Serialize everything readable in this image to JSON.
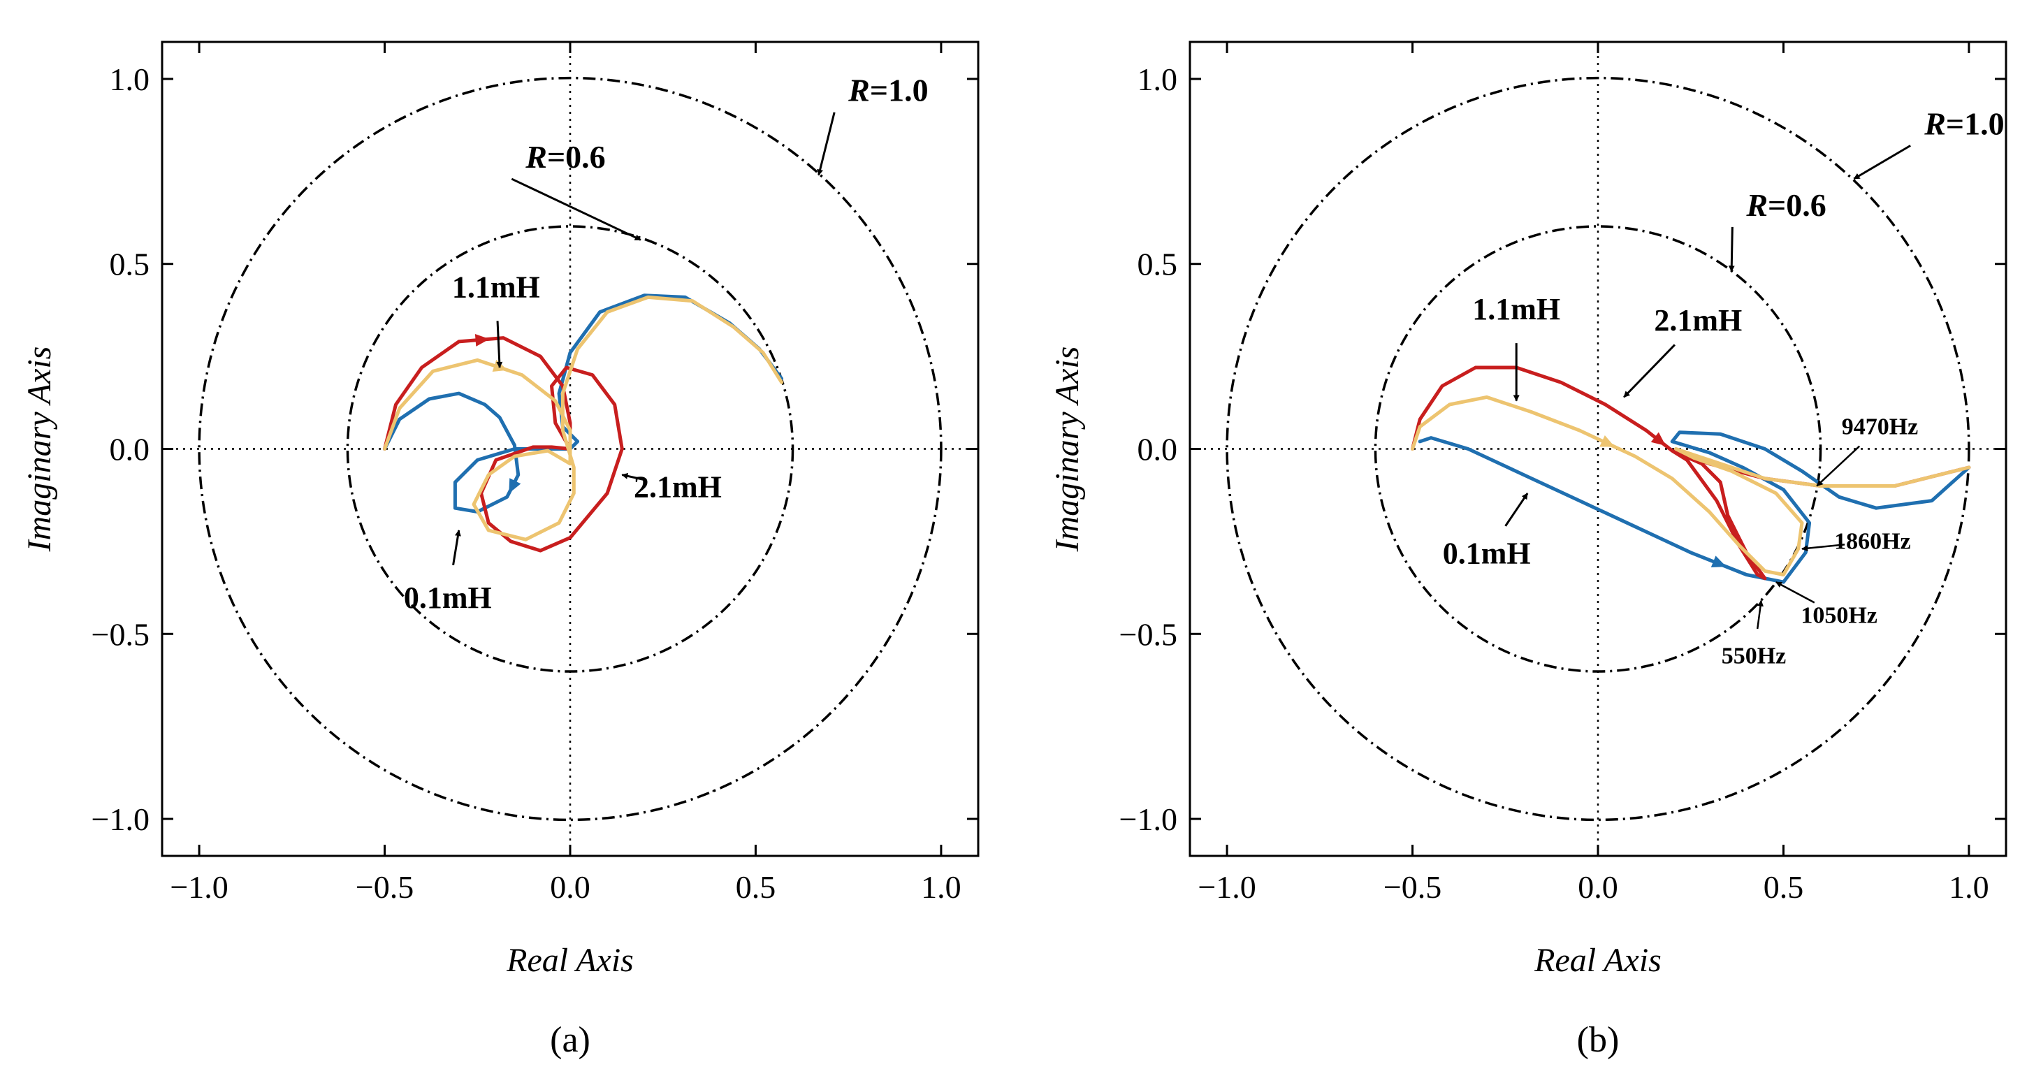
{
  "chart_data": [
    {
      "type": "line",
      "panel_label": "(a)",
      "xlabel": "Real Axis",
      "ylabel": "Imaginary Axis",
      "xlim": [
        -1.1,
        1.1
      ],
      "ylim": [
        -1.1,
        1.1
      ],
      "xticks": [
        -1.0,
        -0.5,
        0.0,
        0.5,
        1.0
      ],
      "yticks": [
        -1.0,
        -0.5,
        0.0,
        0.5,
        1.0
      ],
      "xtick_labels": [
        "−1.0",
        "−0.5",
        "0.0",
        "0.5",
        "1.0"
      ],
      "ytick_labels": [
        "−1.0",
        "−0.5",
        "0.0",
        "0.5",
        "1.0"
      ],
      "reference_circles": [
        {
          "radius": 0.6,
          "label_prefix": "R",
          "label_suffix": "=0.6",
          "label_at": [
            -0.12,
            0.76
          ],
          "arrow_to": [
            0.19,
            0.565
          ]
        },
        {
          "radius": 1.0,
          "label_prefix": "R",
          "label_suffix": "=1.0",
          "label_at": [
            0.75,
            0.94
          ],
          "arrow_to": [
            0.67,
            0.74
          ]
        }
      ],
      "series": [
        {
          "name": "0.1mH",
          "color": "#1f6fb0",
          "points": [
            [
              -0.5,
              0.0
            ],
            [
              -0.46,
              0.08
            ],
            [
              -0.38,
              0.135
            ],
            [
              -0.3,
              0.15
            ],
            [
              -0.23,
              0.12
            ],
            [
              -0.19,
              0.085
            ],
            [
              -0.15,
              0.01
            ],
            [
              -0.14,
              -0.07
            ],
            [
              -0.17,
              -0.13
            ],
            [
              -0.25,
              -0.17
            ],
            [
              -0.31,
              -0.16
            ],
            [
              -0.31,
              -0.09
            ],
            [
              -0.25,
              -0.03
            ],
            [
              -0.15,
              0.0
            ],
            [
              -0.05,
              0.0
            ],
            [
              0.0,
              0.0
            ],
            [
              0.02,
              0.02
            ],
            [
              -0.02,
              0.06
            ],
            [
              -0.03,
              0.15
            ],
            [
              0.0,
              0.26
            ],
            [
              0.08,
              0.37
            ],
            [
              0.2,
              0.415
            ],
            [
              0.31,
              0.41
            ],
            [
              0.43,
              0.34
            ],
            [
              0.51,
              0.27
            ],
            [
              0.57,
              0.19
            ]
          ],
          "arrow_segments": [
            [
              7,
              8
            ]
          ],
          "annotation": {
            "text": "0.1mH",
            "label_at": [
              -0.33,
              -0.43
            ],
            "arrow_to": [
              -0.3,
              -0.22
            ]
          }
        },
        {
          "name": "1.1mH",
          "color": "#c81e1e",
          "points": [
            [
              -0.5,
              0.0
            ],
            [
              -0.47,
              0.12
            ],
            [
              -0.4,
              0.22
            ],
            [
              -0.3,
              0.29
            ],
            [
              -0.18,
              0.3
            ],
            [
              -0.08,
              0.25
            ],
            [
              -0.02,
              0.17
            ],
            [
              0.0,
              0.07
            ],
            [
              0.0,
              0.0
            ],
            [
              -0.05,
              0.005
            ],
            [
              -0.1,
              0.005
            ],
            [
              -0.2,
              -0.03
            ],
            [
              -0.24,
              -0.12
            ],
            [
              -0.22,
              -0.2
            ],
            [
              -0.16,
              -0.25
            ],
            [
              -0.08,
              -0.275
            ],
            [
              0.0,
              -0.24
            ],
            [
              0.1,
              -0.12
            ],
            [
              0.14,
              0.0
            ],
            [
              0.12,
              0.12
            ],
            [
              0.06,
              0.2
            ],
            [
              -0.01,
              0.22
            ],
            [
              -0.05,
              0.17
            ],
            [
              -0.04,
              0.07
            ],
            [
              0.0,
              0.0
            ]
          ],
          "arrow_segments": [
            [
              3,
              4
            ]
          ],
          "annotation": {
            "text": "1.1mH",
            "label_at": [
              -0.2,
              0.41
            ],
            "arrow_to": [
              -0.19,
              0.22
            ]
          }
        },
        {
          "name": "2.1mH",
          "color": "#edc470",
          "points": [
            [
              -0.5,
              0.0
            ],
            [
              -0.46,
              0.11
            ],
            [
              -0.37,
              0.21
            ],
            [
              -0.25,
              0.24
            ],
            [
              -0.13,
              0.2
            ],
            [
              -0.04,
              0.13
            ],
            [
              0.0,
              0.05
            ],
            [
              0.0,
              0.0
            ],
            [
              0.0,
              -0.04
            ],
            [
              -0.06,
              -0.005
            ],
            [
              -0.15,
              -0.02
            ],
            [
              -0.22,
              -0.07
            ],
            [
              -0.26,
              -0.15
            ],
            [
              -0.22,
              -0.22
            ],
            [
              -0.12,
              -0.245
            ],
            [
              -0.03,
              -0.2
            ],
            [
              0.01,
              -0.12
            ],
            [
              0.01,
              -0.05
            ],
            [
              -0.02,
              0.05
            ],
            [
              -0.02,
              0.15
            ],
            [
              0.02,
              0.27
            ],
            [
              0.1,
              0.37
            ],
            [
              0.21,
              0.41
            ],
            [
              0.33,
              0.4
            ],
            [
              0.44,
              0.33
            ],
            [
              0.52,
              0.26
            ],
            [
              0.57,
              0.18
            ]
          ],
          "arrow_segments": [
            [
              3,
              4
            ]
          ],
          "annotation": {
            "text": "2.1mH",
            "label_at": [
              0.29,
              -0.13
            ],
            "arrow_to": [
              0.14,
              -0.07
            ]
          }
        }
      ]
    },
    {
      "type": "line",
      "panel_label": "(b)",
      "xlabel": "Real Axis",
      "ylabel": "Imaginary Axis",
      "xlim": [
        -1.1,
        1.1
      ],
      "ylim": [
        -1.1,
        1.1
      ],
      "xticks": [
        -1.0,
        -0.5,
        0.0,
        0.5,
        1.0
      ],
      "yticks": [
        -1.0,
        -0.5,
        0.0,
        0.5,
        1.0
      ],
      "xtick_labels": [
        "−1.0",
        "−0.5",
        "0.0",
        "0.5",
        "1.0"
      ],
      "ytick_labels": [
        "−1.0",
        "−0.5",
        "0.0",
        "0.5",
        "1.0"
      ],
      "reference_circles": [
        {
          "radius": 0.6,
          "label_prefix": "R",
          "label_suffix": "=0.6",
          "label_at": [
            0.4,
            0.63
          ],
          "arrow_to": [
            0.36,
            0.48
          ]
        },
        {
          "radius": 1.0,
          "label_prefix": "R",
          "label_suffix": "=1.0",
          "label_at": [
            0.88,
            0.85
          ],
          "arrow_to": [
            0.69,
            0.73
          ]
        }
      ],
      "series": [
        {
          "name": "0.1mH",
          "color": "#1f6fb0",
          "points": [
            [
              -0.48,
              0.02
            ],
            [
              -0.45,
              0.03
            ],
            [
              -0.35,
              0.0
            ],
            [
              -0.2,
              -0.07
            ],
            [
              -0.05,
              -0.14
            ],
            [
              0.1,
              -0.21
            ],
            [
              0.25,
              -0.28
            ],
            [
              0.4,
              -0.34
            ],
            [
              0.5,
              -0.36
            ],
            [
              0.56,
              -0.28
            ],
            [
              0.57,
              -0.2
            ],
            [
              0.5,
              -0.11
            ],
            [
              0.39,
              -0.05
            ],
            [
              0.3,
              -0.01
            ],
            [
              0.2,
              0.02
            ],
            [
              0.22,
              0.045
            ],
            [
              0.33,
              0.04
            ],
            [
              0.45,
              0.0
            ],
            [
              0.55,
              -0.06
            ],
            [
              0.65,
              -0.13
            ],
            [
              0.75,
              -0.16
            ],
            [
              0.9,
              -0.14
            ],
            [
              1.0,
              -0.05
            ]
          ],
          "arrow_segments": [
            [
              6,
              7
            ]
          ],
          "annotation": {
            "text": "0.1mH",
            "label_at": [
              -0.3,
              -0.31
            ],
            "arrow_to": [
              -0.19,
              -0.12
            ]
          }
        },
        {
          "name": "1.1mH",
          "color": "#c81e1e",
          "points": [
            [
              -0.5,
              0.0
            ],
            [
              -0.48,
              0.08
            ],
            [
              -0.42,
              0.17
            ],
            [
              -0.33,
              0.22
            ],
            [
              -0.22,
              0.22
            ],
            [
              -0.1,
              0.18
            ],
            [
              0.02,
              0.12
            ],
            [
              0.13,
              0.05
            ],
            [
              0.2,
              -0.005
            ],
            [
              0.28,
              -0.04
            ],
            [
              0.33,
              -0.09
            ],
            [
              0.35,
              -0.18
            ],
            [
              0.4,
              -0.28
            ],
            [
              0.45,
              -0.35
            ],
            [
              0.43,
              -0.34
            ],
            [
              0.38,
              -0.26
            ],
            [
              0.32,
              -0.14
            ],
            [
              0.24,
              -0.03
            ],
            [
              0.2,
              -0.005
            ],
            [
              0.3,
              -0.04
            ],
            [
              0.45,
              -0.08
            ],
            [
              0.6,
              -0.1
            ],
            [
              0.8,
              -0.1
            ],
            [
              1.0,
              -0.05
            ]
          ],
          "arrow_segments": [
            [
              7,
              8
            ]
          ],
          "annotation": {
            "text": "1.1mH",
            "label_at": [
              -0.22,
              0.35
            ],
            "arrow_to": [
              -0.22,
              0.13
            ]
          }
        },
        {
          "name": "2.1mH",
          "color": "#edc470",
          "points": [
            [
              -0.5,
              0.0
            ],
            [
              -0.48,
              0.06
            ],
            [
              -0.4,
              0.12
            ],
            [
              -0.3,
              0.14
            ],
            [
              -0.18,
              0.1
            ],
            [
              -0.05,
              0.05
            ],
            [
              0.1,
              -0.02
            ],
            [
              0.2,
              -0.08
            ],
            [
              0.3,
              -0.17
            ],
            [
              0.38,
              -0.26
            ],
            [
              0.45,
              -0.33
            ],
            [
              0.5,
              -0.34
            ],
            [
              0.54,
              -0.27
            ],
            [
              0.55,
              -0.2
            ],
            [
              0.48,
              -0.12
            ],
            [
              0.36,
              -0.06
            ],
            [
              0.26,
              -0.025
            ],
            [
              0.21,
              0.0
            ],
            [
              0.3,
              -0.03
            ],
            [
              0.45,
              -0.08
            ],
            [
              0.6,
              -0.1
            ],
            [
              0.8,
              -0.1
            ],
            [
              1.0,
              -0.05
            ]
          ],
          "arrow_segments": [
            [
              5,
              6
            ]
          ],
          "annotation": {
            "text": "2.1mH",
            "label_at": [
              0.27,
              0.32
            ],
            "arrow_to": [
              0.07,
              0.14
            ]
          }
        }
      ],
      "frequency_annotations": [
        {
          "text": "9470Hz",
          "label_at": [
            0.76,
            0.04
          ],
          "arrow_to": [
            0.59,
            -0.1
          ]
        },
        {
          "text": "1860Hz",
          "label_at": [
            0.74,
            -0.27
          ],
          "arrow_to": [
            0.55,
            -0.27
          ]
        },
        {
          "text": "1050Hz",
          "label_at": [
            0.65,
            -0.47
          ],
          "arrow_to": [
            0.48,
            -0.36
          ]
        },
        {
          "text": "550Hz",
          "label_at": [
            0.42,
            -0.58
          ],
          "arrow_to": [
            0.44,
            -0.41
          ]
        }
      ]
    }
  ]
}
